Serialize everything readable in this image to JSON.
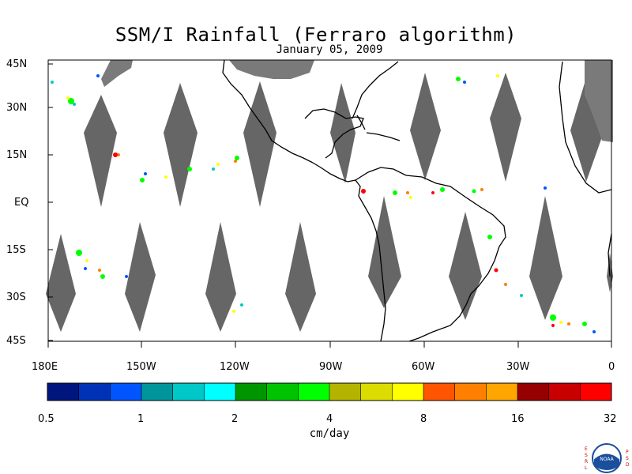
{
  "title": "SSM/I Rainfall (Ferraro algorithm)",
  "subtitle": "January 05, 2009",
  "lat_labels": [
    "45N",
    "30N",
    "15N",
    "EQ",
    "15S",
    "30S",
    "45S"
  ],
  "lon_labels": [
    "180E",
    "150W",
    "120W",
    "90W",
    "60W",
    "30W",
    "0"
  ],
  "colorbar": {
    "labels": [
      "0.5",
      "1",
      "2",
      "4",
      "8",
      "16",
      "32"
    ],
    "units": "cm/day",
    "colors": [
      "#00157e",
      "#0032b8",
      "#0055ff",
      "#00959a",
      "#00c8c8",
      "#00ffff",
      "#009600",
      "#00c400",
      "#00ff00",
      "#b4b400",
      "#dcdc00",
      "#ffff00",
      "#ff5500",
      "#ff8000",
      "#ffa500",
      "#960000",
      "#c80000",
      "#ff0000"
    ]
  },
  "map": {
    "swath_color": "#666666",
    "land_color": "#7a7a7a",
    "coast_color": "#000000"
  },
  "logo": {
    "text": "NOAA",
    "left_text": "ESRL",
    "right_text": "PSD"
  }
}
